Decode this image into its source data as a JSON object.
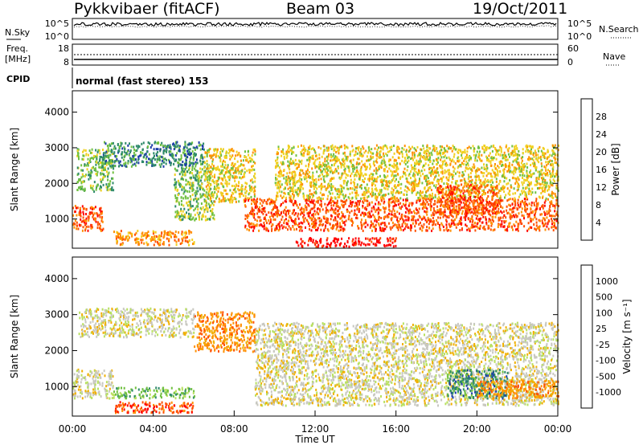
{
  "header": {
    "site": "Pykkvibaer (fitACF)",
    "beam": "Beam 03",
    "date": "19/Oct/2011"
  },
  "chart_data": [
    {
      "type": "line",
      "title": "",
      "left_label": "N.Sky",
      "right_label": "N.Search",
      "yticks_left": [
        "10^5",
        "10^0"
      ],
      "yticks_right": [
        "10^5",
        "10^0"
      ]
    },
    {
      "type": "line",
      "left_label_lines": [
        "Freq.",
        "[MHz]"
      ],
      "right_label": "Nave",
      "yticks_left": [
        "18",
        "8"
      ],
      "yticks_right": [
        "60",
        "0"
      ]
    },
    {
      "type": "table",
      "label": "CPID",
      "text": "normal (fast stereo) 153"
    },
    {
      "type": "heatmap",
      "ylabel": "Slant Range [km]",
      "yticks": [
        "4000",
        "3000",
        "2000",
        "1000"
      ],
      "ylim": [
        180,
        4600
      ],
      "xlim": [
        0,
        24
      ],
      "colorbar": {
        "label": "Power [dB]",
        "ticks": [
          "28",
          "24",
          "20",
          "16",
          "12",
          "8",
          "4"
        ],
        "colors": [
          "#0000ff",
          "#1c3ca8",
          "#2f8a6a",
          "#70c040",
          "#f0d020",
          "#ff9000",
          "#ff5000",
          "#ff0000"
        ]
      },
      "scatter_regions": [
        {
          "t0": 0.0,
          "t1": 1.5,
          "r0": 700,
          "r1": 1400,
          "level": 6
        },
        {
          "t0": 0.2,
          "t1": 2.0,
          "r0": 1800,
          "r1": 3000,
          "level": 3
        },
        {
          "t0": 1.5,
          "t1": 6.5,
          "r0": 2500,
          "r1": 3200,
          "level": 2
        },
        {
          "t0": 2.0,
          "t1": 6.0,
          "r0": 300,
          "r1": 700,
          "level": 5
        },
        {
          "t0": 5.0,
          "t1": 7.0,
          "r0": 1000,
          "r1": 2500,
          "level": 3
        },
        {
          "t0": 6.5,
          "t1": 9.0,
          "r0": 1500,
          "r1": 3000,
          "level": 4
        },
        {
          "t0": 8.5,
          "t1": 24.0,
          "r0": 700,
          "r1": 1600,
          "level": 6
        },
        {
          "t0": 11.0,
          "t1": 16.0,
          "r0": 250,
          "r1": 500,
          "level": 7
        },
        {
          "t0": 10.0,
          "t1": 24.0,
          "r0": 1600,
          "r1": 3100,
          "level": 4
        },
        {
          "t0": 18.0,
          "t1": 21.0,
          "r0": 1200,
          "r1": 2000,
          "level": 6
        }
      ]
    },
    {
      "type": "heatmap",
      "ylabel": "Slant Range [km]",
      "yticks": [
        "4000",
        "3000",
        "2000",
        "1000"
      ],
      "ylim": [
        180,
        4600
      ],
      "xlim": [
        0,
        24
      ],
      "xticks": [
        "00:00",
        "04:00",
        "08:00",
        "12:00",
        "16:00",
        "20:00",
        "00:00"
      ],
      "xlabel": "Time UT",
      "colorbar": {
        "label": "Velocity [m s⁻¹]",
        "ticks": [
          "1000",
          "500",
          "100",
          "25",
          "-25",
          "-100",
          "-500",
          "-1000"
        ],
        "colors": [
          "#ff0000",
          "#ff5000",
          "#ff9000",
          "#f0b000",
          "#c8c8c0",
          "#b8e060",
          "#70c040",
          "#2f8a6a",
          "#1c3ca8"
        ]
      },
      "scatter_regions": [
        {
          "t0": 0.0,
          "t1": 2.0,
          "r0": 700,
          "r1": 1500,
          "level": 4
        },
        {
          "t0": 0.3,
          "t1": 6.0,
          "r0": 2400,
          "r1": 3200,
          "level": 4
        },
        {
          "t0": 2.0,
          "t1": 6.0,
          "r0": 300,
          "r1": 600,
          "level": 1
        },
        {
          "t0": 2.0,
          "t1": 6.0,
          "r0": 700,
          "r1": 1000,
          "level": 6
        },
        {
          "t0": 6.0,
          "t1": 9.0,
          "r0": 2000,
          "r1": 3100,
          "level": 2
        },
        {
          "t0": 9.0,
          "t1": 24.0,
          "r0": 500,
          "r1": 2800,
          "level": 4
        },
        {
          "t0": 18.5,
          "t1": 21.5,
          "r0": 700,
          "r1": 1500,
          "level": 7
        },
        {
          "t0": 20.0,
          "t1": 24.0,
          "r0": 700,
          "r1": 1200,
          "level": 2
        }
      ]
    }
  ]
}
